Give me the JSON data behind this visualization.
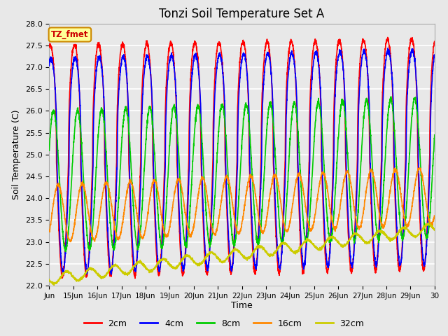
{
  "title": "Tonzi Soil Temperature Set A",
  "xlabel": "Time",
  "ylabel": "Soil Temperature (C)",
  "ylim": [
    22.0,
    28.0
  ],
  "yticks": [
    22.0,
    22.5,
    23.0,
    23.5,
    24.0,
    24.5,
    25.0,
    25.5,
    26.0,
    26.5,
    27.0,
    27.5,
    28.0
  ],
  "xtick_labels": [
    "Jun",
    "15Jun",
    "16Jun",
    "17Jun",
    "18Jun",
    "19Jun",
    "20Jun",
    "21Jun",
    "22Jun",
    "23Jun",
    "24Jun",
    "25Jun",
    "26Jun",
    "27Jun",
    "28Jun",
    "29Jun",
    "30"
  ],
  "legend_labels": [
    "2cm",
    "4cm",
    "8cm",
    "16cm",
    "32cm"
  ],
  "colors": [
    "#FF0000",
    "#0000FF",
    "#00CC00",
    "#FF8800",
    "#CCCC00"
  ],
  "linewidths": [
    1.2,
    1.2,
    1.2,
    1.2,
    1.2
  ],
  "label_box_text": "TZ_fmet",
  "label_box_facecolor": "#FFFF99",
  "label_box_edgecolor": "#CC8800",
  "label_text_color": "#CC0000",
  "background_color": "#E8E8E8",
  "plot_bg_color": "#E8E8E8",
  "grid_color": "#FFFFFF"
}
